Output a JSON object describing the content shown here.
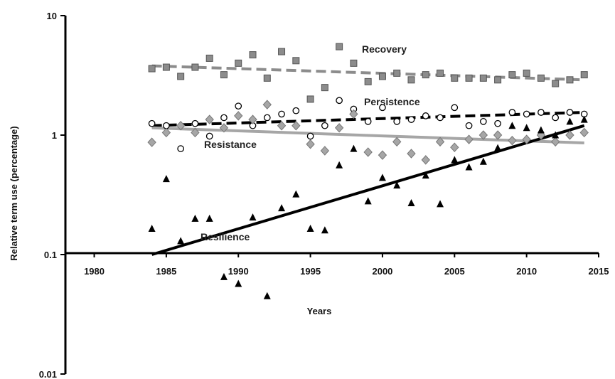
{
  "chart_data": {
    "type": "scatter",
    "title": "",
    "xlabel": "Years",
    "ylabel": "Relative term use (percentage)",
    "xlim": [
      1978,
      2015
    ],
    "ylim": [
      0.01,
      10
    ],
    "yscale": "log",
    "x_ticks": [
      "1980",
      "1985",
      "1990",
      "1995",
      "2000",
      "2005",
      "2010",
      "2015"
    ],
    "y_ticks": [
      "0.01",
      "0.1",
      "1",
      "10"
    ],
    "grid": false,
    "legend": "none",
    "series": [
      {
        "name": "Recovery",
        "marker": "square",
        "marker_color": "#8c8c8c",
        "trend_style": "dashed",
        "trend_color": "#8c8c8c",
        "trend": [
          [
            1984,
            3.8
          ],
          [
            2014,
            2.9
          ]
        ],
        "points": [
          [
            1984,
            3.6
          ],
          [
            1985,
            3.7
          ],
          [
            1986,
            3.1
          ],
          [
            1987,
            3.7
          ],
          [
            1988,
            4.4
          ],
          [
            1989,
            3.2
          ],
          [
            1990,
            4.0
          ],
          [
            1991,
            4.7
          ],
          [
            1992,
            3.0
          ],
          [
            1993,
            5.0
          ],
          [
            1994,
            4.2
          ],
          [
            1995,
            2.0
          ],
          [
            1996,
            2.5
          ],
          [
            1997,
            5.5
          ],
          [
            1998,
            4.0
          ],
          [
            1999,
            2.8
          ],
          [
            2000,
            3.1
          ],
          [
            2001,
            3.3
          ],
          [
            2002,
            2.9
          ],
          [
            2003,
            3.2
          ],
          [
            2004,
            3.3
          ],
          [
            2005,
            3.0
          ],
          [
            2006,
            3.0
          ],
          [
            2007,
            3.0
          ],
          [
            2008,
            2.9
          ],
          [
            2009,
            3.2
          ],
          [
            2010,
            3.3
          ],
          [
            2011,
            3.0
          ],
          [
            2012,
            2.7
          ],
          [
            2013,
            2.9
          ],
          [
            2014,
            3.2
          ]
        ]
      },
      {
        "name": "Persistence",
        "marker": "circle-open",
        "marker_color": "#000000",
        "trend_style": "dashed",
        "trend_color": "#000000",
        "trend": [
          [
            1984,
            1.2
          ],
          [
            2014,
            1.55
          ]
        ],
        "points": [
          [
            1984,
            1.25
          ],
          [
            1985,
            1.2
          ],
          [
            1986,
            0.77
          ],
          [
            1987,
            1.25
          ],
          [
            1988,
            0.98
          ],
          [
            1989,
            1.4
          ],
          [
            1990,
            1.75
          ],
          [
            1991,
            1.2
          ],
          [
            1992,
            1.4
          ],
          [
            1993,
            1.5
          ],
          [
            1994,
            1.6
          ],
          [
            1995,
            0.98
          ],
          [
            1996,
            1.2
          ],
          [
            1997,
            1.95
          ],
          [
            1998,
            1.65
          ],
          [
            1999,
            1.3
          ],
          [
            2000,
            1.7
          ],
          [
            2001,
            1.3
          ],
          [
            2002,
            1.35
          ],
          [
            2003,
            1.45
          ],
          [
            2004,
            1.4
          ],
          [
            2005,
            1.7
          ],
          [
            2006,
            1.2
          ],
          [
            2007,
            1.3
          ],
          [
            2008,
            1.25
          ],
          [
            2009,
            1.55
          ],
          [
            2010,
            1.5
          ],
          [
            2011,
            1.55
          ],
          [
            2012,
            1.4
          ],
          [
            2013,
            1.55
          ],
          [
            2014,
            1.5
          ]
        ]
      },
      {
        "name": "Resistance",
        "marker": "diamond",
        "marker_color": "#a6a6a6",
        "trend_style": "solid",
        "trend_color": "#a6a6a6",
        "trend": [
          [
            1984,
            1.15
          ],
          [
            2014,
            0.86
          ]
        ],
        "points": [
          [
            1984,
            0.87
          ],
          [
            1985,
            1.05
          ],
          [
            1986,
            1.2
          ],
          [
            1987,
            1.05
          ],
          [
            1988,
            1.35
          ],
          [
            1989,
            1.15
          ],
          [
            1990,
            1.45
          ],
          [
            1991,
            1.35
          ],
          [
            1992,
            1.8
          ],
          [
            1993,
            1.2
          ],
          [
            1994,
            1.2
          ],
          [
            1995,
            0.84
          ],
          [
            1996,
            0.74
          ],
          [
            1997,
            1.15
          ],
          [
            1998,
            1.5
          ],
          [
            1999,
            0.72
          ],
          [
            2000,
            0.68
          ],
          [
            2001,
            0.88
          ],
          [
            2002,
            0.7
          ],
          [
            2003,
            0.62
          ],
          [
            2004,
            0.88
          ],
          [
            2005,
            0.79
          ],
          [
            2006,
            0.92
          ],
          [
            2007,
            1.0
          ],
          [
            2008,
            1.0
          ],
          [
            2009,
            0.9
          ],
          [
            2010,
            0.92
          ],
          [
            2011,
            1.0
          ],
          [
            2012,
            0.88
          ],
          [
            2013,
            1.0
          ],
          [
            2014,
            1.05
          ]
        ]
      },
      {
        "name": "Resilience",
        "marker": "triangle",
        "marker_color": "#000000",
        "trend_style": "solid",
        "trend_color": "#000000",
        "trend": [
          [
            1984,
            0.1
          ],
          [
            2014,
            1.2
          ]
        ],
        "points": [
          [
            1984,
            0.165
          ],
          [
            1985,
            0.43
          ],
          [
            1986,
            0.13
          ],
          [
            1987,
            0.2
          ],
          [
            1988,
            0.2
          ],
          [
            1989,
            0.065
          ],
          [
            1990,
            0.057
          ],
          [
            1991,
            0.205
          ],
          [
            1992,
            0.045
          ],
          [
            1993,
            0.245
          ],
          [
            1994,
            0.32
          ],
          [
            1995,
            0.165
          ],
          [
            1996,
            0.16
          ],
          [
            1997,
            0.56
          ],
          [
            1998,
            0.77
          ],
          [
            1999,
            0.28
          ],
          [
            2000,
            0.44
          ],
          [
            2001,
            0.38
          ],
          [
            2002,
            0.27
          ],
          [
            2003,
            0.46
          ],
          [
            2004,
            0.265
          ],
          [
            2005,
            0.62
          ],
          [
            2006,
            0.54
          ],
          [
            2007,
            0.6
          ],
          [
            2008,
            0.78
          ],
          [
            2009,
            1.2
          ],
          [
            2010,
            1.15
          ],
          [
            2011,
            1.1
          ],
          [
            2012,
            1.0
          ],
          [
            2013,
            1.3
          ],
          [
            2014,
            1.35
          ]
        ]
      }
    ]
  }
}
